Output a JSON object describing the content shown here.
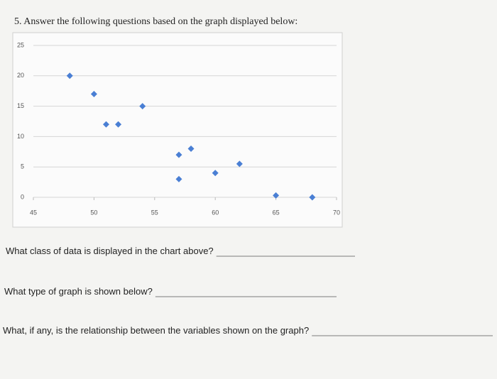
{
  "header": {
    "title": "5. Answer the following questions based on the graph displayed below:"
  },
  "chart_data": {
    "type": "scatter",
    "x": [
      48,
      50,
      51,
      52,
      54,
      57,
      58,
      57,
      60,
      62,
      65,
      68
    ],
    "y": [
      20,
      17,
      12,
      12,
      15,
      7,
      8,
      3,
      4,
      5.5,
      0.3,
      0
    ],
    "color": "#4a7fd4",
    "xlim": [
      45,
      70
    ],
    "xticks": [
      45,
      50,
      55,
      60,
      65,
      70
    ],
    "ylim": [
      0,
      25
    ],
    "yticks": [
      0,
      5,
      10,
      15,
      20,
      25
    ],
    "grid": true
  },
  "questions": [
    "What class of data is displayed in the chart above?",
    "What type of graph is shown below?",
    "What, if any, is the relationship between the variables shown on the graph?"
  ]
}
